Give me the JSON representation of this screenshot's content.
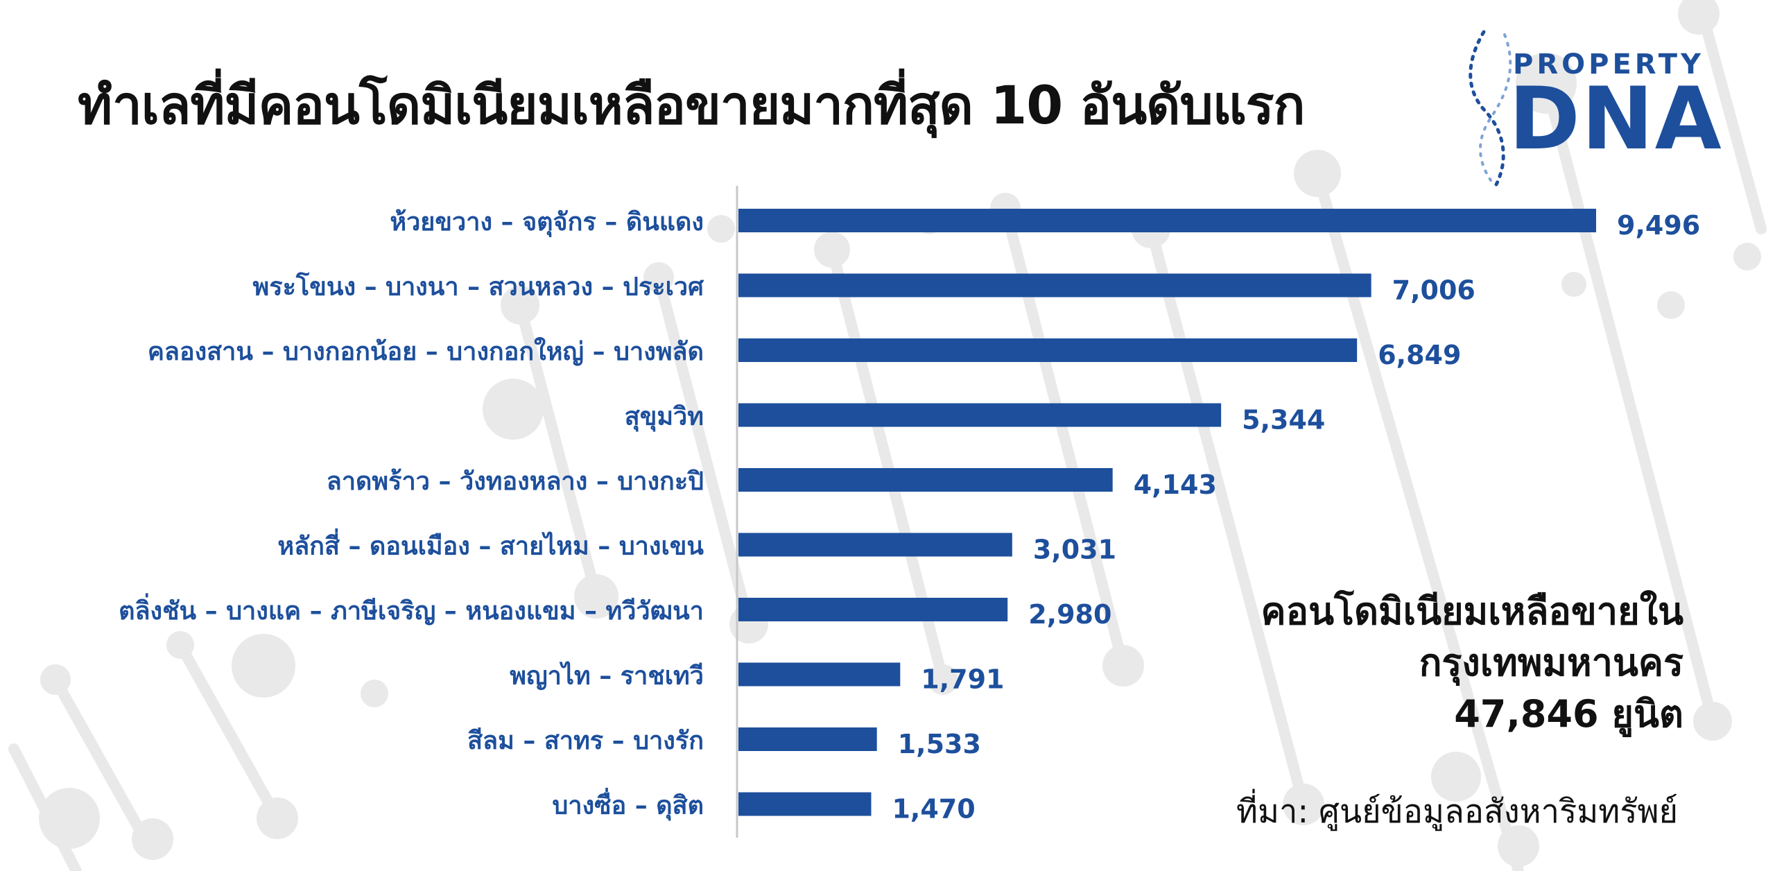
{
  "title": "ทำเลที่มีคอนโดมิเนียมเหลือขายมากที่สุด 10 อันดับแรก",
  "logo": {
    "top_text": "PROPERTY",
    "main_text": "DNA",
    "color": "#1d4f9c"
  },
  "summary": {
    "line1": "คอนโดมิเนียมเหลือขายใน",
    "line2": "กรุงเทพมหานคร",
    "line3": "47,846 ยูนิต"
  },
  "source": "ที่มา: ศูนย์ข้อมูลอสังหาริมทรัพย์",
  "colors": {
    "bar": "#1d4f9c",
    "label": "#1d4f9c",
    "text": "#111111",
    "axis": "#c8c8c8"
  },
  "chart_data": {
    "type": "bar",
    "orientation": "horizontal",
    "categories": [
      "ห้วยขวาง – จตุจักร – ดินแดง",
      "พระโขนง – บางนา – สวนหลวง – ประเวศ",
      "คลองสาน – บางกอกน้อย – บางกอกใหญ่ – บางพลัด",
      "สุขุมวิท",
      "ลาดพร้าว – วังทองหลาง – บางกะปิ",
      "หลักสี่ – ดอนเมือง – สายไหม – บางเขน",
      "ตลิ่งชัน – บางแค – ภาษีเจริญ – หนองแขม – ทวีวัฒนา",
      "พญาไท – ราชเทวี",
      "สีลม – สาทร – บางรัก",
      "บางซื่อ – ดุสิต"
    ],
    "values": [
      9496,
      7006,
      6849,
      5344,
      4143,
      3031,
      2980,
      1791,
      1533,
      1470
    ],
    "value_labels": [
      "9,496",
      "7,006",
      "6,849",
      "5,344",
      "4,143",
      "3,031",
      "2,980",
      "1,791",
      "1,533",
      "1,470"
    ],
    "xlim": [
      0,
      9496
    ],
    "grid": false,
    "legend": "none"
  }
}
